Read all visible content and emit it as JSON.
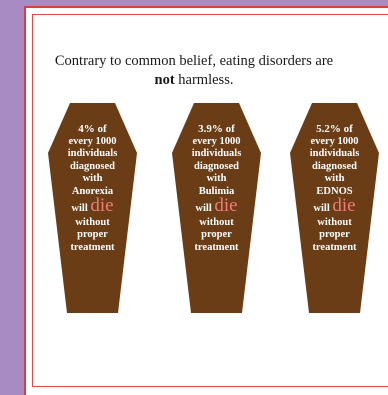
{
  "headline": {
    "line1": "Contrary to common belief, eating disorders are",
    "line2_strong": "not",
    "line2_rest": " harmless."
  },
  "colors": {
    "background": "#a88bc3",
    "coffin": "#6b3d17",
    "die": "#f07a7a",
    "border": "#e23b3b"
  },
  "coffins": [
    {
      "percent": "4% of",
      "lines": [
        "every 1000",
        "individuals",
        "diagnosed",
        "with",
        "Anorexia"
      ],
      "will": "will",
      "die": "die",
      "tail": [
        "without",
        "proper",
        "treatment"
      ]
    },
    {
      "percent": "3.9% of",
      "lines": [
        "every 1000",
        "individuals",
        "diagnosed",
        "with",
        "Bulimia"
      ],
      "will": "will",
      "die": "die",
      "tail": [
        "without",
        "proper",
        "treatment"
      ]
    },
    {
      "percent": "5.2% of",
      "lines": [
        "every 1000",
        "individuals",
        "diagnosed",
        "with",
        "EDNOS"
      ],
      "will": "will",
      "die": "die",
      "tail": [
        "without",
        "proper",
        "treatment"
      ]
    }
  ]
}
